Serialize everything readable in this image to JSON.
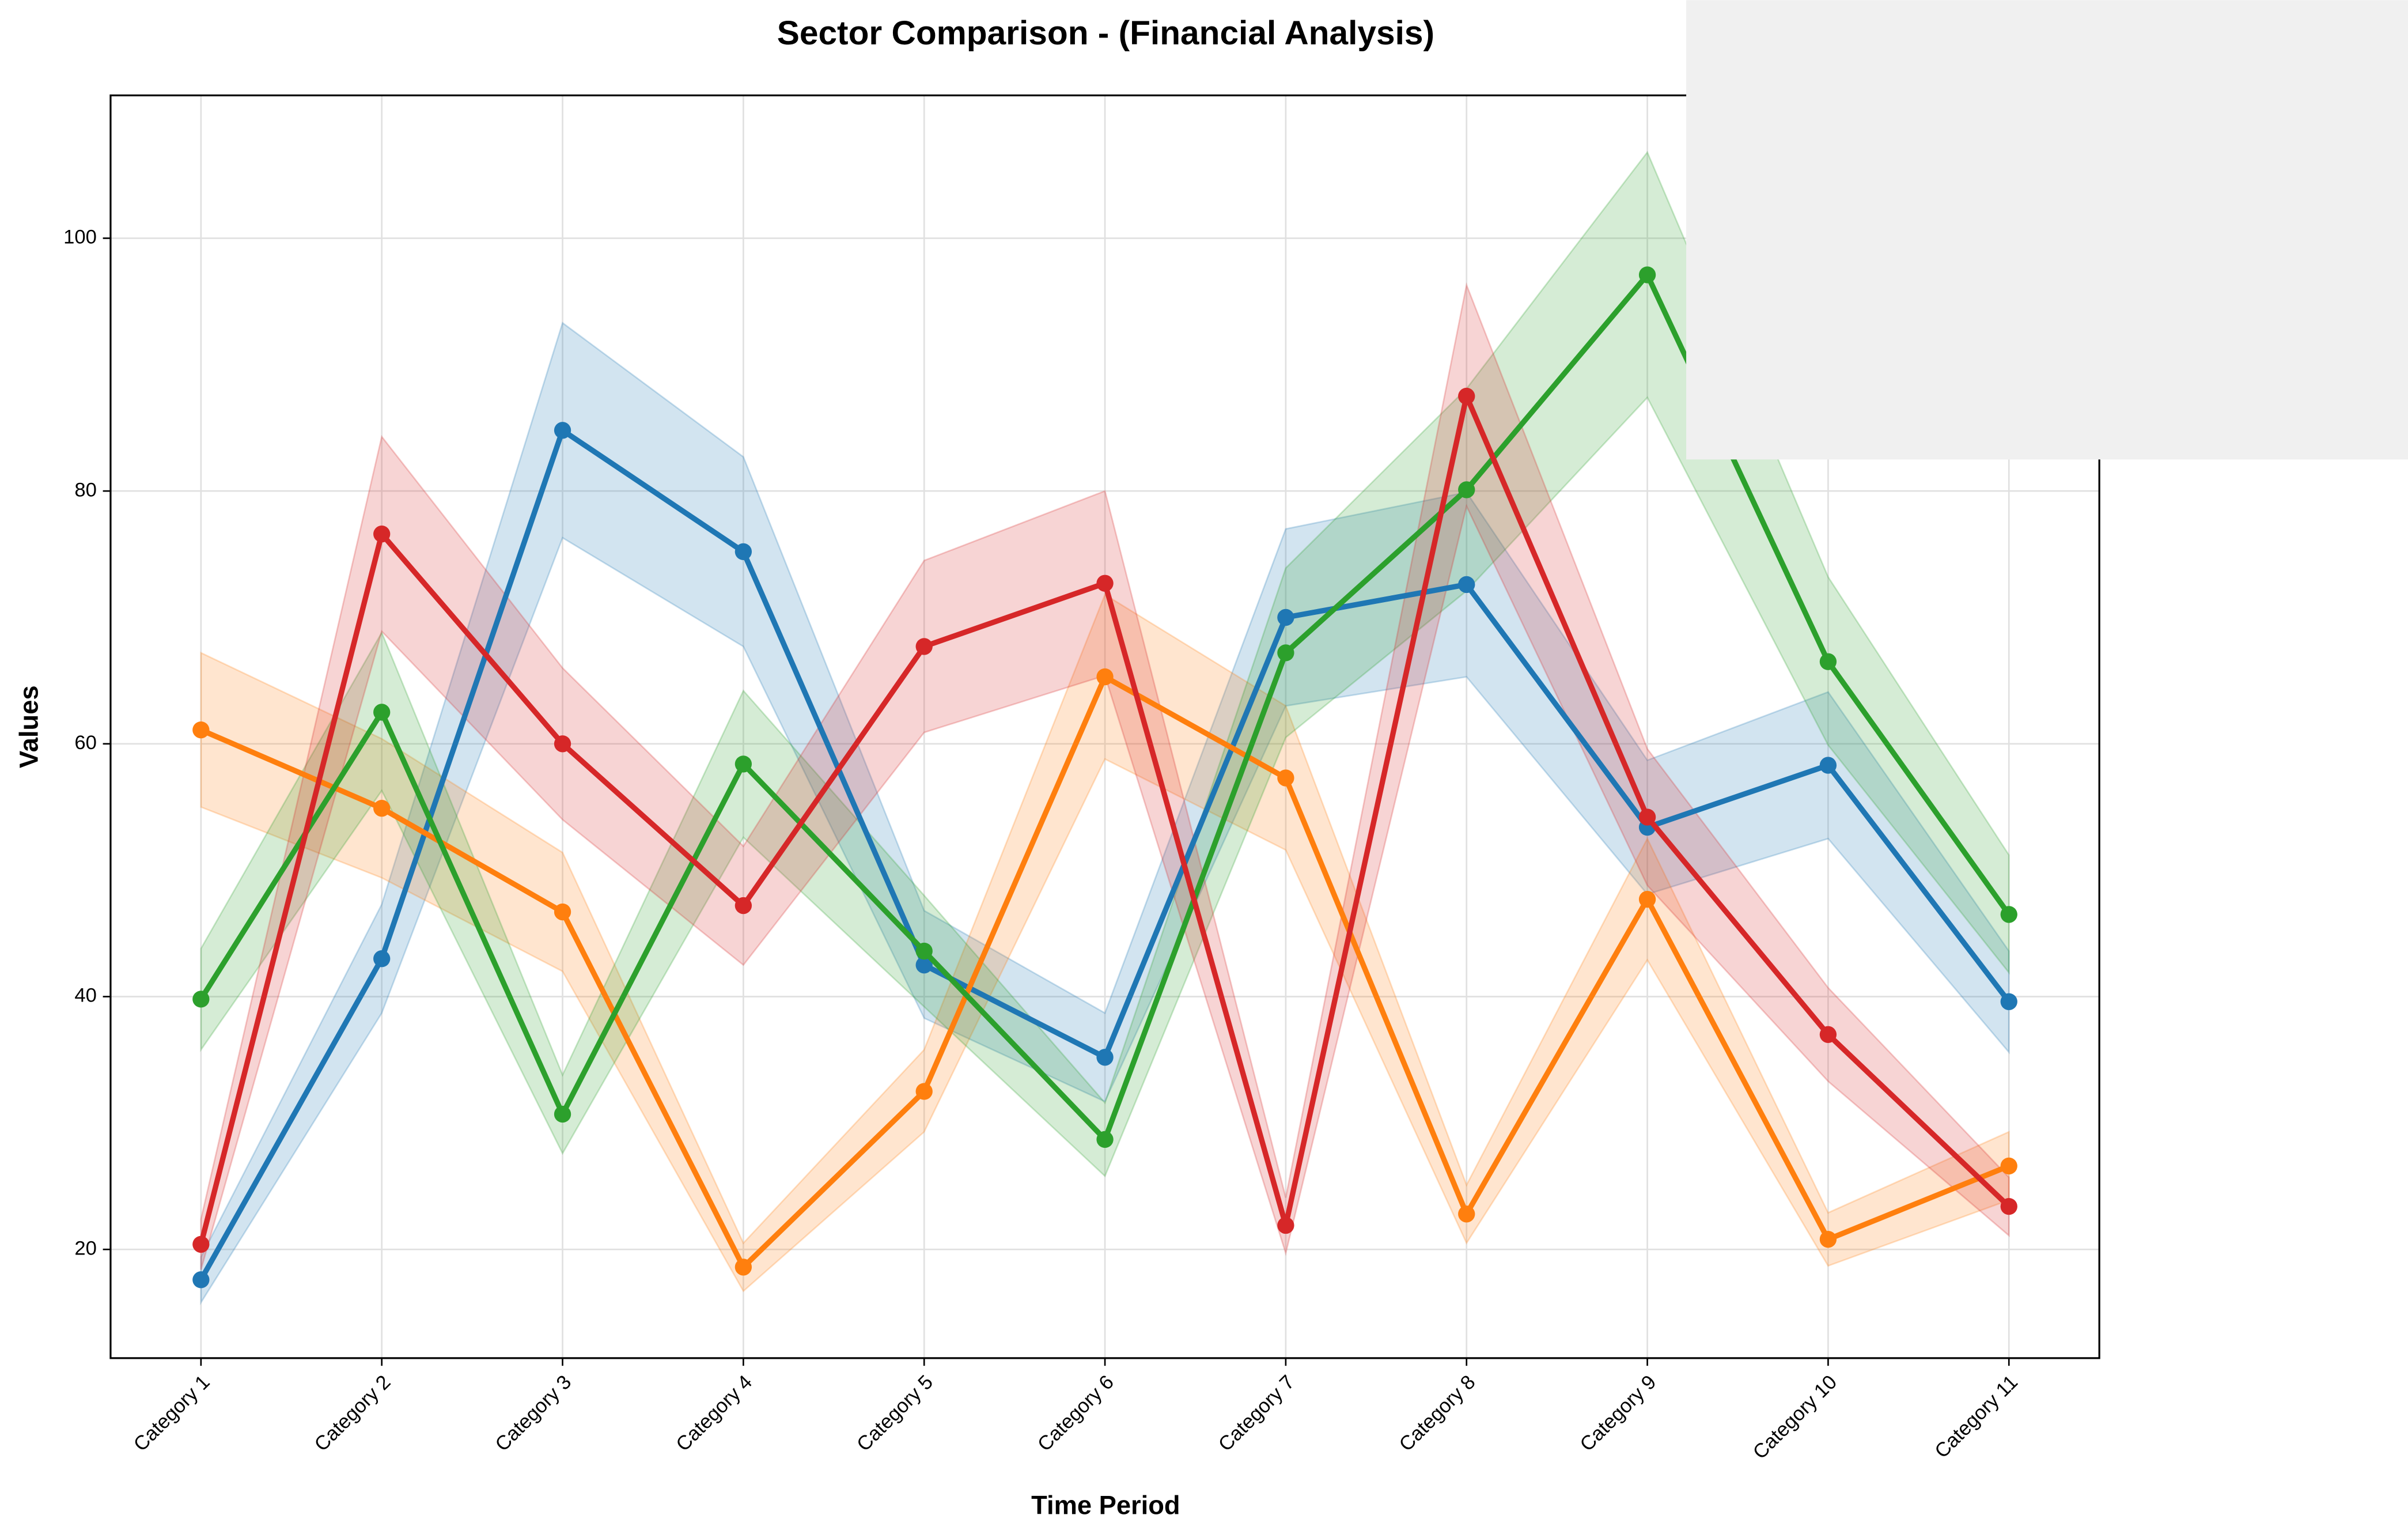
{
  "chart_data": {
    "type": "line",
    "title": "Sector Comparison - (Financial Analysis)",
    "x_label": "Time Period",
    "y_label": "Values",
    "categories": [
      "Category 1",
      "Category 2",
      "Category 3",
      "Category 4",
      "Category 5",
      "Category 6",
      "Category 7",
      "Category 8",
      "Category 9",
      "Category 10",
      "Category 11"
    ],
    "ylim": [
      11.4,
      111.3
    ],
    "yticks": [
      20,
      40,
      60,
      80,
      100
    ],
    "grid": true,
    "series": [
      {
        "color": "#1f77b4",
        "values": [
          17.6,
          43.0,
          84.8,
          75.2,
          42.5,
          35.2,
          70.0,
          72.6,
          53.4,
          58.3,
          39.6
        ],
        "lower": [
          15.8,
          38.7,
          76.3,
          67.7,
          38.3,
          31.7,
          63.0,
          65.3,
          48.1,
          52.5,
          35.6
        ],
        "upper": [
          19.4,
          47.3,
          93.3,
          82.7,
          46.8,
          38.7,
          77.0,
          79.9,
          58.7,
          64.1,
          43.6
        ]
      },
      {
        "color": "#ff7f0e",
        "values": [
          61.1,
          54.9,
          46.7,
          18.6,
          32.5,
          65.3,
          57.3,
          22.8,
          47.7,
          20.8,
          26.6
        ],
        "lower": [
          55.0,
          49.4,
          42.0,
          16.7,
          29.3,
          58.8,
          51.6,
          20.5,
          42.9,
          18.7,
          23.9
        ],
        "upper": [
          67.2,
          60.4,
          51.4,
          20.5,
          35.8,
          71.8,
          63.0,
          25.1,
          52.5,
          22.9,
          29.3
        ]
      },
      {
        "color": "#2ca02c",
        "values": [
          39.8,
          62.5,
          30.7,
          58.4,
          43.6,
          28.7,
          67.2,
          80.1,
          97.1,
          66.5,
          46.5
        ],
        "lower": [
          35.8,
          56.3,
          27.6,
          52.6,
          39.2,
          25.8,
          60.5,
          72.1,
          87.4,
          59.9,
          41.9
        ],
        "upper": [
          43.8,
          68.8,
          33.8,
          64.2,
          48.0,
          31.6,
          73.9,
          88.1,
          106.8,
          73.2,
          51.2
        ]
      },
      {
        "color": "#d62728",
        "values": [
          20.4,
          76.6,
          60.0,
          47.2,
          67.7,
          72.7,
          21.9,
          87.5,
          54.2,
          37.0,
          23.4
        ],
        "lower": [
          18.4,
          68.9,
          54.0,
          42.5,
          60.9,
          65.4,
          19.7,
          78.8,
          48.8,
          33.3,
          21.1
        ],
        "upper": [
          22.4,
          84.3,
          66.0,
          51.9,
          74.5,
          80.0,
          24.1,
          96.3,
          59.6,
          40.7,
          25.7
        ]
      }
    ]
  }
}
